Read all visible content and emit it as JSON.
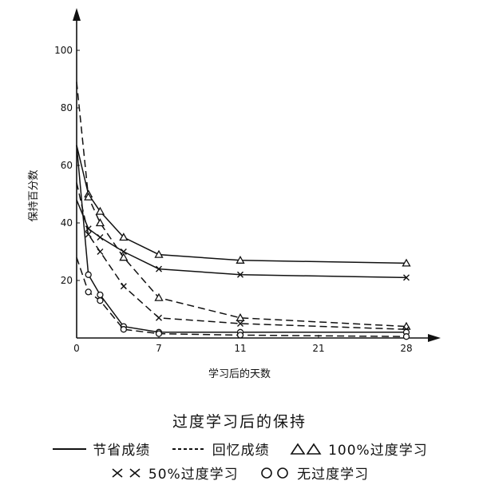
{
  "chart_data": {
    "type": "line",
    "title": "过度学习后的保持",
    "xlabel": "学习后的天数",
    "ylabel": "保持百分数",
    "x_ticks": [
      0,
      7,
      11,
      21,
      28
    ],
    "y_ticks": [
      20,
      40,
      60,
      80,
      100
    ],
    "ylim": [
      0,
      100
    ],
    "grid": false,
    "legend_placement": "bottom",
    "series": [
      {
        "name": "100%过度学习",
        "metric": "节省成绩",
        "marker": "triangle",
        "x": [
          0,
          1,
          2,
          4,
          7,
          11,
          28
        ],
        "y": [
          67,
          50,
          44,
          35,
          29,
          27,
          26
        ]
      },
      {
        "name": "50%过度学习",
        "metric": "节省成绩",
        "marker": "cross",
        "x": [
          0,
          1,
          2,
          4,
          7,
          11,
          28
        ],
        "y": [
          48,
          38,
          35,
          30,
          24,
          22,
          21
        ]
      },
      {
        "name": "100%过度学习",
        "metric": "回忆成绩",
        "marker": "triangle",
        "x": [
          0,
          1,
          2,
          4,
          7,
          11,
          28
        ],
        "y": [
          89,
          49,
          40,
          28,
          14,
          7,
          4
        ]
      },
      {
        "name": "50%过度学习",
        "metric": "回忆成绩",
        "marker": "cross",
        "x": [
          0,
          1,
          2,
          4,
          7,
          11,
          28
        ],
        "y": [
          54,
          36,
          30,
          18,
          7,
          5,
          3
        ]
      },
      {
        "name": "无过度学习",
        "metric": "节省成绩",
        "marker": "circle",
        "x": [
          0,
          1,
          2,
          4,
          7,
          11,
          28
        ],
        "y": [
          67,
          22,
          15,
          4,
          2,
          2,
          2
        ]
      },
      {
        "name": "无过度学习",
        "metric": "回忆成绩",
        "marker": "circle",
        "x": [
          0,
          1,
          2,
          4,
          7,
          11,
          28
        ],
        "y": [
          28,
          16,
          13,
          3,
          1.5,
          1,
          0.5
        ]
      }
    ]
  },
  "legend": {
    "row1": [
      {
        "id": "solid",
        "symbol": "——",
        "label": "节省成绩"
      },
      {
        "id": "dashed",
        "symbol": "------",
        "label": "回忆成绩"
      },
      {
        "id": "triangle",
        "symbol": "△△",
        "label": "100%过度学习"
      }
    ],
    "row2": [
      {
        "id": "cross",
        "symbol": "××",
        "label": "50%过度学习"
      },
      {
        "id": "circle",
        "symbol": "○○",
        "label": "无过度学习"
      }
    ]
  }
}
